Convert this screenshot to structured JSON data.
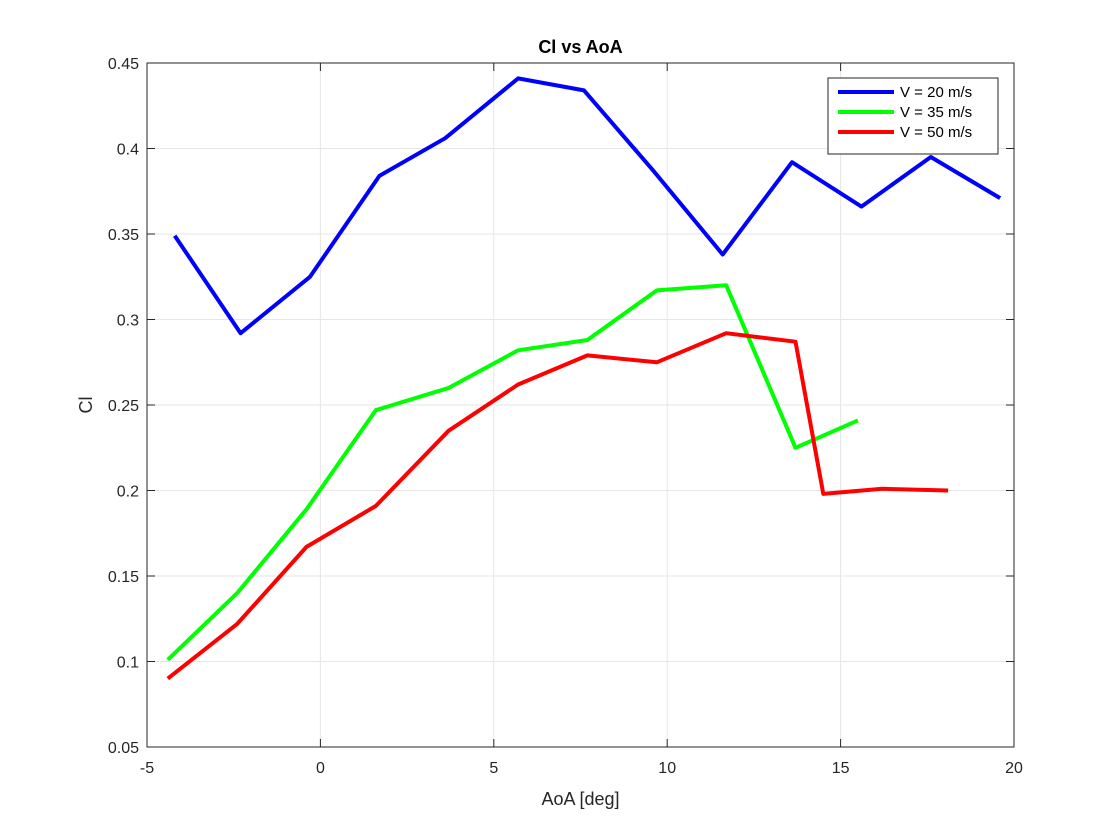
{
  "chart_data": {
    "type": "line",
    "title": "Cl vs AoA",
    "xlabel": "AoA [deg]",
    "ylabel": "Cl",
    "xlim": [
      -5,
      20
    ],
    "ylim": [
      0.05,
      0.45
    ],
    "xticks": [
      "-5",
      "0",
      "5",
      "10",
      "15",
      "20"
    ],
    "yticks": [
      "0.05",
      "0.1",
      "0.15",
      "0.2",
      "0.25",
      "0.3",
      "0.35",
      "0.4",
      "0.45"
    ],
    "grid": true,
    "legend_position": "top-right",
    "series": [
      {
        "name": "V = 20 m/s",
        "color": "#0000ff",
        "x": [
          -4.2,
          -2.3,
          -0.3,
          1.7,
          3.6,
          5.7,
          7.6,
          9.6,
          11.6,
          13.6,
          15.6,
          17.6,
          19.6
        ],
        "y": [
          0.349,
          0.292,
          0.325,
          0.384,
          0.406,
          0.441,
          0.434,
          0.387,
          0.338,
          0.392,
          0.366,
          0.395,
          0.371
        ]
      },
      {
        "name": "V = 35 m/s",
        "color": "#00ff00",
        "x": [
          -4.4,
          -2.4,
          -0.4,
          1.6,
          3.7,
          5.7,
          7.7,
          9.7,
          11.7,
          13.7,
          15.5
        ],
        "y": [
          0.101,
          0.14,
          0.189,
          0.247,
          0.26,
          0.282,
          0.288,
          0.317,
          0.32,
          0.225,
          0.241
        ]
      },
      {
        "name": "V = 50 m/s",
        "color": "#ff0000",
        "x": [
          -4.4,
          -2.4,
          -0.4,
          1.6,
          3.7,
          5.7,
          7.7,
          9.7,
          11.7,
          13.7,
          14.5,
          16.2,
          18.1
        ],
        "y": [
          0.09,
          0.122,
          0.167,
          0.191,
          0.235,
          0.262,
          0.279,
          0.275,
          0.292,
          0.287,
          0.198,
          0.201,
          0.2
        ]
      }
    ]
  }
}
